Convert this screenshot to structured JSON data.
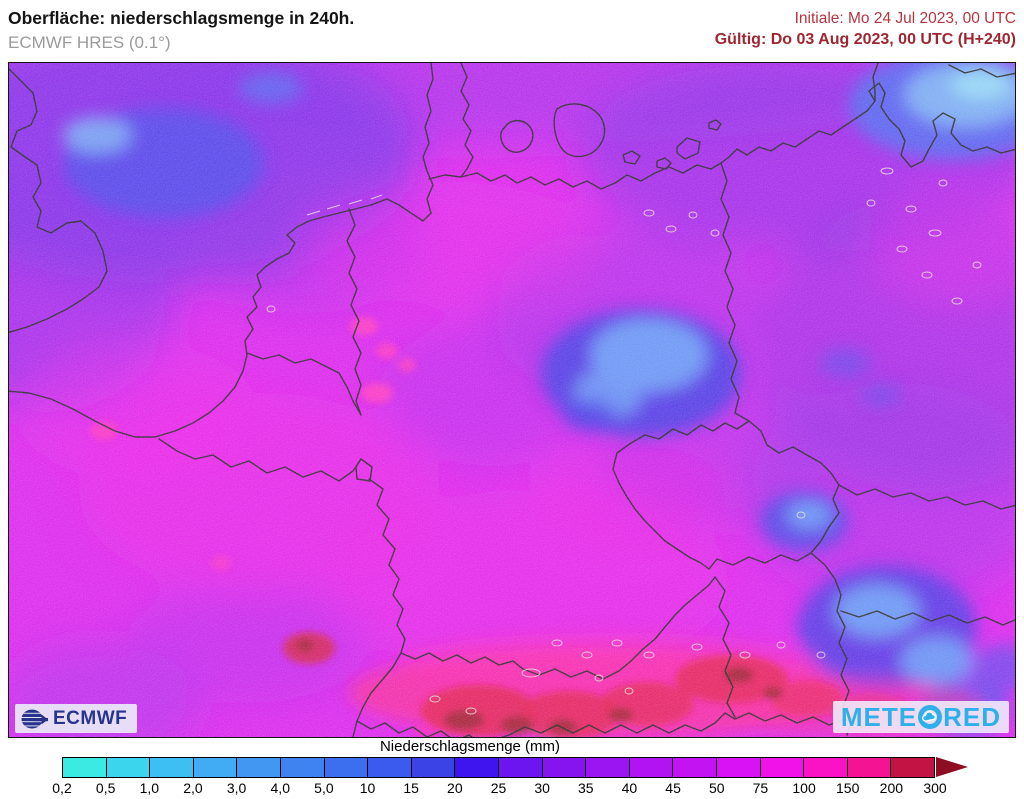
{
  "header": {
    "title": "Oberfläche: niederschlagsmenge in 240h.",
    "subtitle": "ECMWF HRES (0.1°)",
    "init_time": "Initiale: Mo 24 Jul 2023, 00 UTC",
    "valid_time": "Gültig: Do 03 Aug 2023, 00 UTC (H+240)"
  },
  "map": {
    "ecmwf_logo": "ECMWF",
    "meteored_logo_left": "METE",
    "meteored_logo_right": "RED"
  },
  "legend": {
    "title": "Niederschlagsmenge (mm)",
    "boundary_labels": [
      "0,2",
      "0,5",
      "1,0",
      "2,0",
      "3,0",
      "4,0",
      "5,0",
      "10",
      "15",
      "20",
      "25",
      "30",
      "35",
      "40",
      "45",
      "50",
      "75",
      "100",
      "150",
      "200",
      "300"
    ],
    "cell_colors": [
      "#3BEBE3",
      "#3BD5ED",
      "#3EBFF3",
      "#41ABF3",
      "#4297F3",
      "#3F83F1",
      "#3C6FF0",
      "#3A5BED",
      "#3B43E7",
      "#3E15EF",
      "#6C15F1",
      "#8514F1",
      "#9B14F2",
      "#B113F2",
      "#C313F3",
      "#D812F4",
      "#F112E9",
      "#F913C4",
      "#F41493",
      "#C31244"
    ],
    "arrow_color": "#8D0E23"
  },
  "theme": {
    "subtitle_color": "#9B9B9B",
    "init_color": "#B5343F",
    "valid_color": "#9E2630",
    "ecmwf_navy": "#27348B",
    "meteored_cyan": "#2FB0E8",
    "map_base_magenta": "#D813EC"
  }
}
